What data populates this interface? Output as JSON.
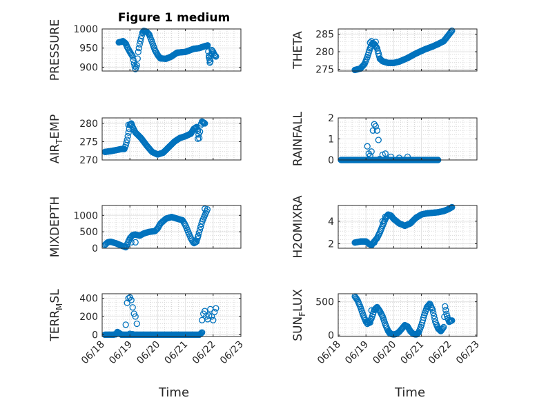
{
  "figure_title": "Figure 1 medium",
  "xlabel": "Time",
  "x_tick_labels": [
    "06/18",
    "06/19",
    "06/20",
    "06/21",
    "06/22",
    "06/23"
  ],
  "colors": {
    "marker": "#0072BD",
    "axes": "#262626",
    "grid": "#d9d9d9"
  },
  "chart_data": [
    {
      "type": "scatter",
      "ylabel": "PRESSURE",
      "ylabel_sub": "",
      "ylabel_tail": "",
      "xlim": [
        0,
        5
      ],
      "ylim": [
        890,
        1000
      ],
      "yticks": [
        {
          "v": 900,
          "label": "900"
        },
        {
          "v": 950,
          "label": "950"
        },
        {
          "v": 1000,
          "label": "1000"
        }
      ],
      "curve": [
        [
          0.6,
          965
        ],
        [
          0.75,
          968
        ],
        [
          0.85,
          962
        ],
        [
          0.9,
          953
        ],
        [
          1.0,
          940
        ],
        [
          1.1,
          928
        ],
        [
          1.15,
          910
        ],
        [
          1.2,
          895
        ],
        [
          1.25,
          905
        ],
        [
          1.3,
          940
        ],
        [
          1.35,
          960
        ],
        [
          1.4,
          975
        ],
        [
          1.45,
          990
        ],
        [
          1.5,
          995
        ],
        [
          1.6,
          993
        ],
        [
          1.7,
          985
        ],
        [
          1.8,
          965
        ],
        [
          1.9,
          945
        ],
        [
          2.0,
          932
        ],
        [
          2.1,
          923
        ],
        [
          2.3,
          922
        ],
        [
          2.5,
          928
        ],
        [
          2.7,
          938
        ],
        [
          3.0,
          940
        ],
        [
          3.3,
          948
        ],
        [
          3.5,
          950
        ],
        [
          3.7,
          955
        ],
        [
          3.8,
          957
        ],
        [
          3.85,
          925
        ],
        [
          3.9,
          915
        ],
        [
          3.95,
          945
        ],
        [
          4.0,
          940
        ],
        [
          4.05,
          932
        ],
        [
          4.1,
          928
        ]
      ],
      "step": 0.025,
      "extra": [
        [
          3.85,
          930
        ],
        [
          3.88,
          912
        ],
        [
          3.95,
          935
        ]
      ]
    },
    {
      "type": "scatter",
      "ylabel": "THETA",
      "ylabel_sub": "",
      "ylabel_tail": "",
      "xlim": [
        0,
        5
      ],
      "ylim": [
        274.5,
        286.5
      ],
      "yticks": [
        {
          "v": 275,
          "label": "275"
        },
        {
          "v": 280,
          "label": "280"
        },
        {
          "v": 285,
          "label": "285"
        }
      ],
      "curve": [
        [
          0.6,
          274.8
        ],
        [
          0.8,
          275.2
        ],
        [
          0.95,
          276.5
        ],
        [
          1.05,
          278.5
        ],
        [
          1.15,
          281
        ],
        [
          1.25,
          282.5
        ],
        [
          1.3,
          282.2
        ],
        [
          1.4,
          281
        ],
        [
          1.5,
          278
        ],
        [
          1.6,
          277.3
        ],
        [
          1.8,
          276.8
        ],
        [
          2.0,
          276.8
        ],
        [
          2.2,
          277.2
        ],
        [
          2.5,
          278.2
        ],
        [
          2.8,
          279.5
        ],
        [
          3.1,
          280.6
        ],
        [
          3.4,
          281.5
        ],
        [
          3.6,
          282.2
        ],
        [
          3.8,
          283
        ],
        [
          3.95,
          284.5
        ],
        [
          4.1,
          286
        ]
      ],
      "step": 0.025,
      "extra": [
        [
          1.15,
          282.6
        ],
        [
          1.2,
          283
        ],
        [
          1.35,
          282.8
        ],
        [
          1.45,
          279.5
        ]
      ]
    },
    {
      "type": "scatter",
      "ylabel": "AIR",
      "ylabel_sub": "T",
      "ylabel_tail": "EMP",
      "xlim": [
        0,
        5
      ],
      "ylim": [
        270,
        281.5
      ],
      "yticks": [
        {
          "v": 270,
          "label": "270"
        },
        {
          "v": 275,
          "label": "275"
        },
        {
          "v": 280,
          "label": "280"
        }
      ],
      "curve": [
        [
          0.1,
          272.2
        ],
        [
          0.3,
          272.4
        ],
        [
          0.5,
          272.7
        ],
        [
          0.7,
          273
        ],
        [
          0.8,
          273
        ],
        [
          0.85,
          274
        ],
        [
          0.9,
          275.5
        ],
        [
          0.95,
          277.5
        ],
        [
          1.0,
          279.5
        ],
        [
          1.05,
          280
        ],
        [
          1.1,
          279
        ],
        [
          1.2,
          277.5
        ],
        [
          1.4,
          276
        ],
        [
          1.6,
          274
        ],
        [
          1.8,
          272.2
        ],
        [
          2.0,
          271.5
        ],
        [
          2.2,
          272
        ],
        [
          2.4,
          273.5
        ],
        [
          2.6,
          275
        ],
        [
          2.8,
          276
        ],
        [
          3.0,
          276.5
        ],
        [
          3.2,
          277.2
        ],
        [
          3.3,
          278.5
        ],
        [
          3.4,
          279
        ],
        [
          3.45,
          278
        ],
        [
          3.5,
          276
        ],
        [
          3.55,
          279.5
        ],
        [
          3.6,
          280.5
        ],
        [
          3.7,
          280
        ]
      ],
      "step": 0.025,
      "extra": [
        [
          0.95,
          279.6
        ],
        [
          1.05,
          279.8
        ],
        [
          3.45,
          275.8
        ]
      ]
    },
    {
      "type": "scatter",
      "ylabel": "RAINFALL",
      "ylabel_sub": "",
      "ylabel_tail": "",
      "xlim": [
        0,
        5
      ],
      "ylim": [
        0,
        2
      ],
      "yticks": [
        {
          "v": 0,
          "label": "0"
        },
        {
          "v": 1,
          "label": "1"
        },
        {
          "v": 2,
          "label": "2"
        }
      ],
      "curve": [
        [
          0.1,
          0
        ],
        [
          3.6,
          0
        ]
      ],
      "step": 0.025,
      "extra": [
        [
          1.05,
          0.65
        ],
        [
          1.1,
          0.3
        ],
        [
          1.15,
          0.2
        ],
        [
          1.2,
          0.4
        ],
        [
          1.25,
          1.4
        ],
        [
          1.3,
          1.7
        ],
        [
          1.35,
          1.6
        ],
        [
          1.4,
          1.4
        ],
        [
          1.45,
          0.95
        ],
        [
          1.5,
          0.05
        ],
        [
          1.6,
          0.25
        ],
        [
          1.7,
          0.3
        ],
        [
          1.75,
          0.05
        ],
        [
          1.9,
          0.15
        ],
        [
          2.2,
          0.1
        ],
        [
          2.5,
          0.15
        ]
      ]
    },
    {
      "type": "scatter",
      "ylabel": "MIXDEPTH",
      "ylabel_sub": "",
      "ylabel_tail": "",
      "xlim": [
        0,
        5
      ],
      "ylim": [
        0,
        1300
      ],
      "yticks": [
        {
          "v": 0,
          "label": "0"
        },
        {
          "v": 500,
          "label": "500"
        },
        {
          "v": 1000,
          "label": "1000"
        }
      ],
      "curve": [
        [
          0.1,
          100
        ],
        [
          0.2,
          180
        ],
        [
          0.3,
          200
        ],
        [
          0.5,
          150
        ],
        [
          0.7,
          80
        ],
        [
          0.85,
          30
        ],
        [
          0.9,
          120
        ],
        [
          1.0,
          300
        ],
        [
          1.1,
          400
        ],
        [
          1.2,
          420
        ],
        [
          1.35,
          380
        ],
        [
          1.5,
          450
        ],
        [
          1.7,
          500
        ],
        [
          1.9,
          520
        ],
        [
          2.0,
          600
        ],
        [
          2.1,
          750
        ],
        [
          2.3,
          900
        ],
        [
          2.5,
          950
        ],
        [
          2.7,
          900
        ],
        [
          2.9,
          850
        ],
        [
          3.0,
          700
        ],
        [
          3.1,
          500
        ],
        [
          3.2,
          300
        ],
        [
          3.3,
          150
        ],
        [
          3.4,
          200
        ],
        [
          3.5,
          500
        ],
        [
          3.6,
          800
        ],
        [
          3.7,
          1000
        ],
        [
          3.8,
          1200
        ]
      ],
      "step": 0.03,
      "extra": [
        [
          1.05,
          180
        ],
        [
          1.2,
          180
        ],
        [
          3.45,
          350
        ],
        [
          3.55,
          650
        ],
        [
          3.7,
          1200
        ]
      ]
    },
    {
      "type": "scatter",
      "ylabel": "H2OMIXRA",
      "ylabel_sub": "",
      "ylabel_tail": "",
      "xlim": [
        0,
        5
      ],
      "ylim": [
        1.6,
        5.4
      ],
      "yticks": [
        {
          "v": 2,
          "label": "2"
        },
        {
          "v": 4,
          "label": "4"
        }
      ],
      "curve": [
        [
          0.6,
          2.1
        ],
        [
          0.8,
          2.2
        ],
        [
          1.0,
          2.2
        ],
        [
          1.1,
          2.0
        ],
        [
          1.2,
          1.9
        ],
        [
          1.3,
          2.2
        ],
        [
          1.4,
          2.5
        ],
        [
          1.5,
          3.0
        ],
        [
          1.6,
          3.6
        ],
        [
          1.7,
          4.2
        ],
        [
          1.8,
          4.6
        ],
        [
          1.9,
          4.5
        ],
        [
          2.0,
          4.2
        ],
        [
          2.2,
          3.8
        ],
        [
          2.4,
          3.6
        ],
        [
          2.6,
          3.8
        ],
        [
          2.8,
          4.3
        ],
        [
          3.0,
          4.6
        ],
        [
          3.2,
          4.7
        ],
        [
          3.4,
          4.75
        ],
        [
          3.6,
          4.8
        ],
        [
          3.8,
          4.9
        ],
        [
          3.95,
          5.05
        ],
        [
          4.1,
          5.25
        ]
      ],
      "step": 0.025,
      "extra": [
        [
          1.2,
          1.85
        ],
        [
          1.3,
          2.1
        ],
        [
          1.6,
          4.0
        ],
        [
          1.7,
          4.4
        ]
      ]
    },
    {
      "type": "scatter",
      "ylabel": "TERR",
      "ylabel_sub": "M",
      "ylabel_tail": "SL",
      "xlim": [
        0,
        5
      ],
      "ylim": [
        -20,
        450
      ],
      "yticks": [
        {
          "v": 0,
          "label": "0"
        },
        {
          "v": 200,
          "label": "200"
        },
        {
          "v": 400,
          "label": "400"
        }
      ],
      "curve": [
        [
          0.1,
          0
        ],
        [
          0.4,
          0
        ],
        [
          0.5,
          5
        ],
        [
          0.55,
          30
        ],
        [
          0.6,
          20
        ],
        [
          0.7,
          0
        ],
        [
          3.5,
          0
        ],
        [
          3.55,
          10
        ],
        [
          3.6,
          25
        ]
      ],
      "step": 0.025,
      "extra": [
        [
          0.85,
          110
        ],
        [
          0.9,
          350
        ],
        [
          0.95,
          400
        ],
        [
          1.0,
          410
        ],
        [
          1.05,
          380
        ],
        [
          1.1,
          300
        ],
        [
          1.15,
          230
        ],
        [
          1.2,
          200
        ],
        [
          1.25,
          120
        ],
        [
          3.6,
          160
        ],
        [
          3.65,
          230
        ],
        [
          3.7,
          260
        ],
        [
          3.75,
          200
        ],
        [
          3.8,
          170
        ],
        [
          3.85,
          210
        ],
        [
          3.9,
          280
        ],
        [
          3.95,
          200
        ],
        [
          4.0,
          160
        ],
        [
          4.05,
          250
        ],
        [
          4.1,
          290
        ],
        [
          1.0,
          10
        ],
        [
          1.1,
          5
        ]
      ]
    },
    {
      "type": "scatter",
      "ylabel": "SUN",
      "ylabel_sub": "F",
      "ylabel_tail": "LUX",
      "xlim": [
        0,
        5
      ],
      "ylim": [
        -20,
        620
      ],
      "yticks": [
        {
          "v": 0,
          "label": "0"
        },
        {
          "v": 500,
          "label": "500"
        }
      ],
      "curve": [
        [
          0.6,
          580
        ],
        [
          0.7,
          520
        ],
        [
          0.8,
          420
        ],
        [
          0.9,
          300
        ],
        [
          1.0,
          200
        ],
        [
          1.1,
          180
        ],
        [
          1.2,
          250
        ],
        [
          1.3,
          380
        ],
        [
          1.4,
          420
        ],
        [
          1.5,
          360
        ],
        [
          1.6,
          280
        ],
        [
          1.7,
          160
        ],
        [
          1.8,
          60
        ],
        [
          1.9,
          20
        ],
        [
          2.0,
          10
        ],
        [
          2.1,
          20
        ],
        [
          2.2,
          50
        ],
        [
          2.3,
          100
        ],
        [
          2.4,
          150
        ],
        [
          2.5,
          130
        ],
        [
          2.6,
          60
        ],
        [
          2.7,
          20
        ],
        [
          2.8,
          10
        ],
        [
          2.9,
          40
        ],
        [
          3.0,
          150
        ],
        [
          3.1,
          300
        ],
        [
          3.2,
          420
        ],
        [
          3.3,
          470
        ],
        [
          3.4,
          380
        ],
        [
          3.5,
          200
        ],
        [
          3.6,
          100
        ],
        [
          3.7,
          60
        ],
        [
          3.8,
          120
        ],
        [
          3.85,
          430
        ],
        [
          3.9,
          320
        ],
        [
          3.95,
          250
        ],
        [
          4.0,
          200
        ],
        [
          4.1,
          220
        ]
      ],
      "step": 0.025,
      "extra": [
        [
          1.05,
          170
        ],
        [
          1.15,
          190
        ],
        [
          1.2,
          370
        ],
        [
          1.85,
          30
        ],
        [
          2.85,
          15
        ]
      ]
    }
  ]
}
